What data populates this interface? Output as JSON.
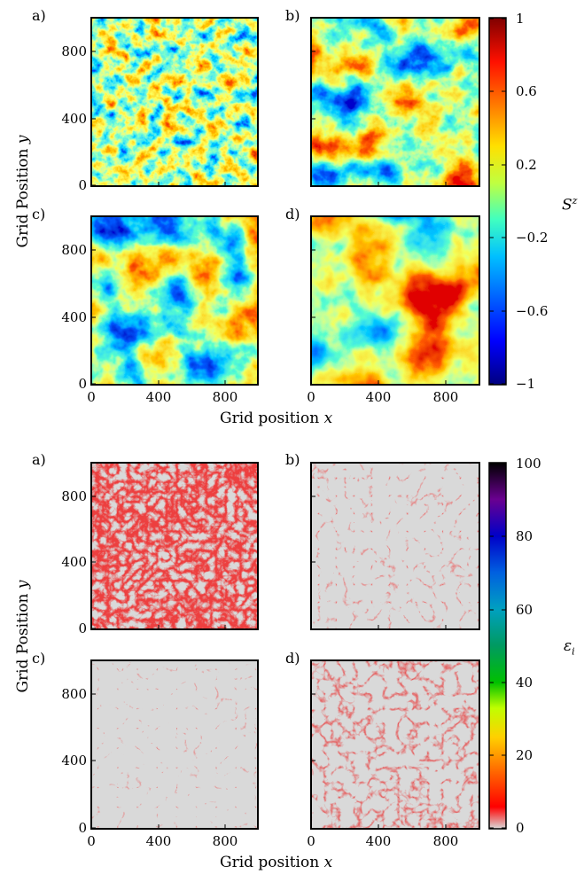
{
  "figure_top": {
    "panel_labels": [
      "a)",
      "b)",
      "c)",
      "d)"
    ],
    "ylabel": "Grid Position",
    "ylabel_var": "y",
    "xlabel": "Grid position",
    "xlabel_var": "x",
    "yticks": [
      "0",
      "400",
      "800"
    ],
    "xticks": [
      "0",
      "400",
      "800"
    ],
    "colorbar": {
      "label_main": "S",
      "label_sup": "z",
      "ticks": [
        "1",
        "0.6",
        "0.2",
        "−0.2",
        "−0.6",
        "−1"
      ],
      "range": [
        -1,
        1
      ],
      "colormap": "jet",
      "colors": [
        "#00007f",
        "#0000ff",
        "#007fff",
        "#00ffff",
        "#7fff7f",
        "#ffff00",
        "#ff7f00",
        "#ff0000",
        "#7f0000"
      ]
    },
    "panels": [
      {
        "label": "a)",
        "pattern": "fine-grained random domains"
      },
      {
        "label": "b)",
        "pattern": "medium domains"
      },
      {
        "label": "c)",
        "pattern": "medium domains"
      },
      {
        "label": "d)",
        "pattern": "large coarsened domains"
      }
    ]
  },
  "figure_bottom": {
    "panel_labels": [
      "a)",
      "b)",
      "c)",
      "d)"
    ],
    "ylabel": "Grid Position",
    "ylabel_var": "y",
    "xlabel": "Grid position",
    "xlabel_var": "x",
    "yticks": [
      "0",
      "400",
      "800"
    ],
    "xticks": [
      "0",
      "400",
      "800"
    ],
    "colorbar": {
      "label_main": "ε",
      "label_sub": "i",
      "ticks": [
        "100",
        "80",
        "60",
        "40",
        "20",
        "0"
      ],
      "range": [
        0,
        100
      ],
      "colormap": "nipy_spectral_r",
      "colors": [
        "#d9d9d9",
        "#ff0000",
        "#ff7f00",
        "#ffff00",
        "#00c800",
        "#00aaaa",
        "#0066ff",
        "#0000cc",
        "#660099",
        "#000000"
      ]
    },
    "panels": [
      {
        "label": "a)",
        "pattern": "dense red network"
      },
      {
        "label": "b)",
        "pattern": "sparse red filaments"
      },
      {
        "label": "c)",
        "pattern": "very sparse faint red"
      },
      {
        "label": "d)",
        "pattern": "moderate red filaments"
      }
    ]
  },
  "chart_data": [
    {
      "type": "heatmap",
      "title": "",
      "xlabel": "Grid position x",
      "ylabel": "Grid Position y",
      "xlim": [
        0,
        1000
      ],
      "ylim": [
        0,
        1000
      ],
      "colorbar_label": "S^z",
      "colorbar_range": [
        -1,
        1
      ],
      "panels": [
        "a)",
        "b)",
        "c)",
        "d)"
      ]
    },
    {
      "type": "heatmap",
      "title": "",
      "xlabel": "Grid position x",
      "ylabel": "Grid Position y",
      "xlim": [
        0,
        1000
      ],
      "ylim": [
        0,
        1000
      ],
      "colorbar_label": "ε_i",
      "colorbar_range": [
        0,
        100
      ],
      "panels": [
        "a)",
        "b)",
        "c)",
        "d)"
      ]
    }
  ]
}
